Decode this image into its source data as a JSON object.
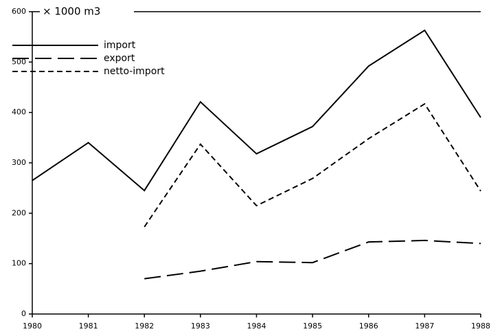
{
  "chart_data": {
    "type": "line",
    "y_label": "× 1000 m3",
    "x": [
      1980,
      1981,
      1982,
      1983,
      1984,
      1985,
      1986,
      1987,
      1988
    ],
    "xlim": [
      1980,
      1988
    ],
    "xticks": [
      1980,
      1981,
      1982,
      1983,
      1984,
      1985,
      1986,
      1987,
      1988
    ],
    "ylim": [
      0,
      600
    ],
    "yticks": [
      0,
      100,
      200,
      300,
      400,
      500,
      600
    ],
    "legend": "upper left",
    "series": [
      {
        "name": "import",
        "color": "#000000",
        "linestyle": "solid",
        "values": [
          265,
          340,
          245,
          421,
          318,
          372,
          492,
          563,
          390
        ]
      },
      {
        "name": "export",
        "color": "#000000",
        "linestyle": "long-dash",
        "values": [
          null,
          null,
          70,
          85,
          104,
          102,
          143,
          146,
          140
        ]
      },
      {
        "name": "netto-import",
        "color": "#000000",
        "linestyle": "short-dash",
        "values": [
          null,
          null,
          173,
          337,
          215,
          269,
          348,
          417,
          244
        ]
      }
    ]
  }
}
